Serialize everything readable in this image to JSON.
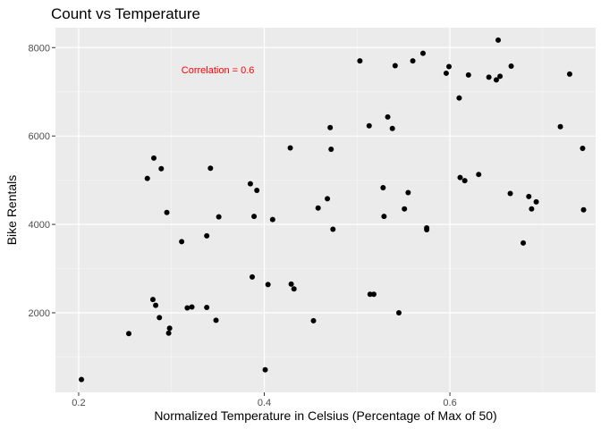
{
  "chart_data": {
    "type": "scatter",
    "title": "Count vs Temperature",
    "xlabel": "Normalized Temperature in Celsius (Percentage of Max of 50)",
    "ylabel": "Bike Rentals",
    "xlim": [
      0.175,
      0.757
    ],
    "ylim": [
      200,
      8450
    ],
    "xticks": [
      0.2,
      0.4,
      0.6
    ],
    "xtick_labels": [
      "0.2",
      "0.4",
      "0.6"
    ],
    "yticks": [
      2000,
      4000,
      6000,
      8000
    ],
    "ytick_labels": [
      "2000",
      "4000",
      "6000",
      "8000"
    ],
    "grid": true,
    "background": "#ebebeb",
    "point_color": "#000000",
    "annotation": {
      "text": "Correlation = 0.6",
      "x": 0.35,
      "y": 7500,
      "color": "#ff0000"
    },
    "points": [
      [
        0.203,
        490
      ],
      [
        0.254,
        1530
      ],
      [
        0.274,
        5040
      ],
      [
        0.281,
        5500
      ],
      [
        0.289,
        5260
      ],
      [
        0.295,
        4270
      ],
      [
        0.28,
        2300
      ],
      [
        0.283,
        2170
      ],
      [
        0.287,
        1890
      ],
      [
        0.297,
        1540
      ],
      [
        0.298,
        1650
      ],
      [
        0.311,
        3610
      ],
      [
        0.317,
        2110
      ],
      [
        0.322,
        2130
      ],
      [
        0.338,
        2120
      ],
      [
        0.338,
        3740
      ],
      [
        0.342,
        5270
      ],
      [
        0.348,
        1830
      ],
      [
        0.351,
        4170
      ],
      [
        0.385,
        4920
      ],
      [
        0.387,
        2810
      ],
      [
        0.389,
        4180
      ],
      [
        0.392,
        4770
      ],
      [
        0.401,
        710
      ],
      [
        0.404,
        2640
      ],
      [
        0.409,
        4110
      ],
      [
        0.428,
        5730
      ],
      [
        0.429,
        2650
      ],
      [
        0.432,
        2540
      ],
      [
        0.453,
        1820
      ],
      [
        0.458,
        4370
      ],
      [
        0.468,
        4580
      ],
      [
        0.471,
        6190
      ],
      [
        0.472,
        5700
      ],
      [
        0.474,
        3890
      ],
      [
        0.503,
        7700
      ],
      [
        0.513,
        6230
      ],
      [
        0.514,
        2420
      ],
      [
        0.518,
        2420
      ],
      [
        0.528,
        4830
      ],
      [
        0.529,
        4180
      ],
      [
        0.533,
        6430
      ],
      [
        0.538,
        6170
      ],
      [
        0.541,
        7590
      ],
      [
        0.545,
        2000
      ],
      [
        0.551,
        4350
      ],
      [
        0.555,
        4720
      ],
      [
        0.56,
        7700
      ],
      [
        0.571,
        7870
      ],
      [
        0.575,
        3880
      ],
      [
        0.575,
        3920
      ],
      [
        0.596,
        7420
      ],
      [
        0.599,
        7570
      ],
      [
        0.61,
        6860
      ],
      [
        0.611,
        5060
      ],
      [
        0.616,
        4990
      ],
      [
        0.62,
        7380
      ],
      [
        0.631,
        5130
      ],
      [
        0.642,
        7330
      ],
      [
        0.65,
        7270
      ],
      [
        0.652,
        8170
      ],
      [
        0.654,
        7350
      ],
      [
        0.665,
        4700
      ],
      [
        0.666,
        7580
      ],
      [
        0.679,
        3580
      ],
      [
        0.685,
        4630
      ],
      [
        0.688,
        4350
      ],
      [
        0.693,
        4510
      ],
      [
        0.719,
        6210
      ],
      [
        0.729,
        7400
      ],
      [
        0.743,
        5720
      ],
      [
        0.744,
        4330
      ]
    ]
  }
}
